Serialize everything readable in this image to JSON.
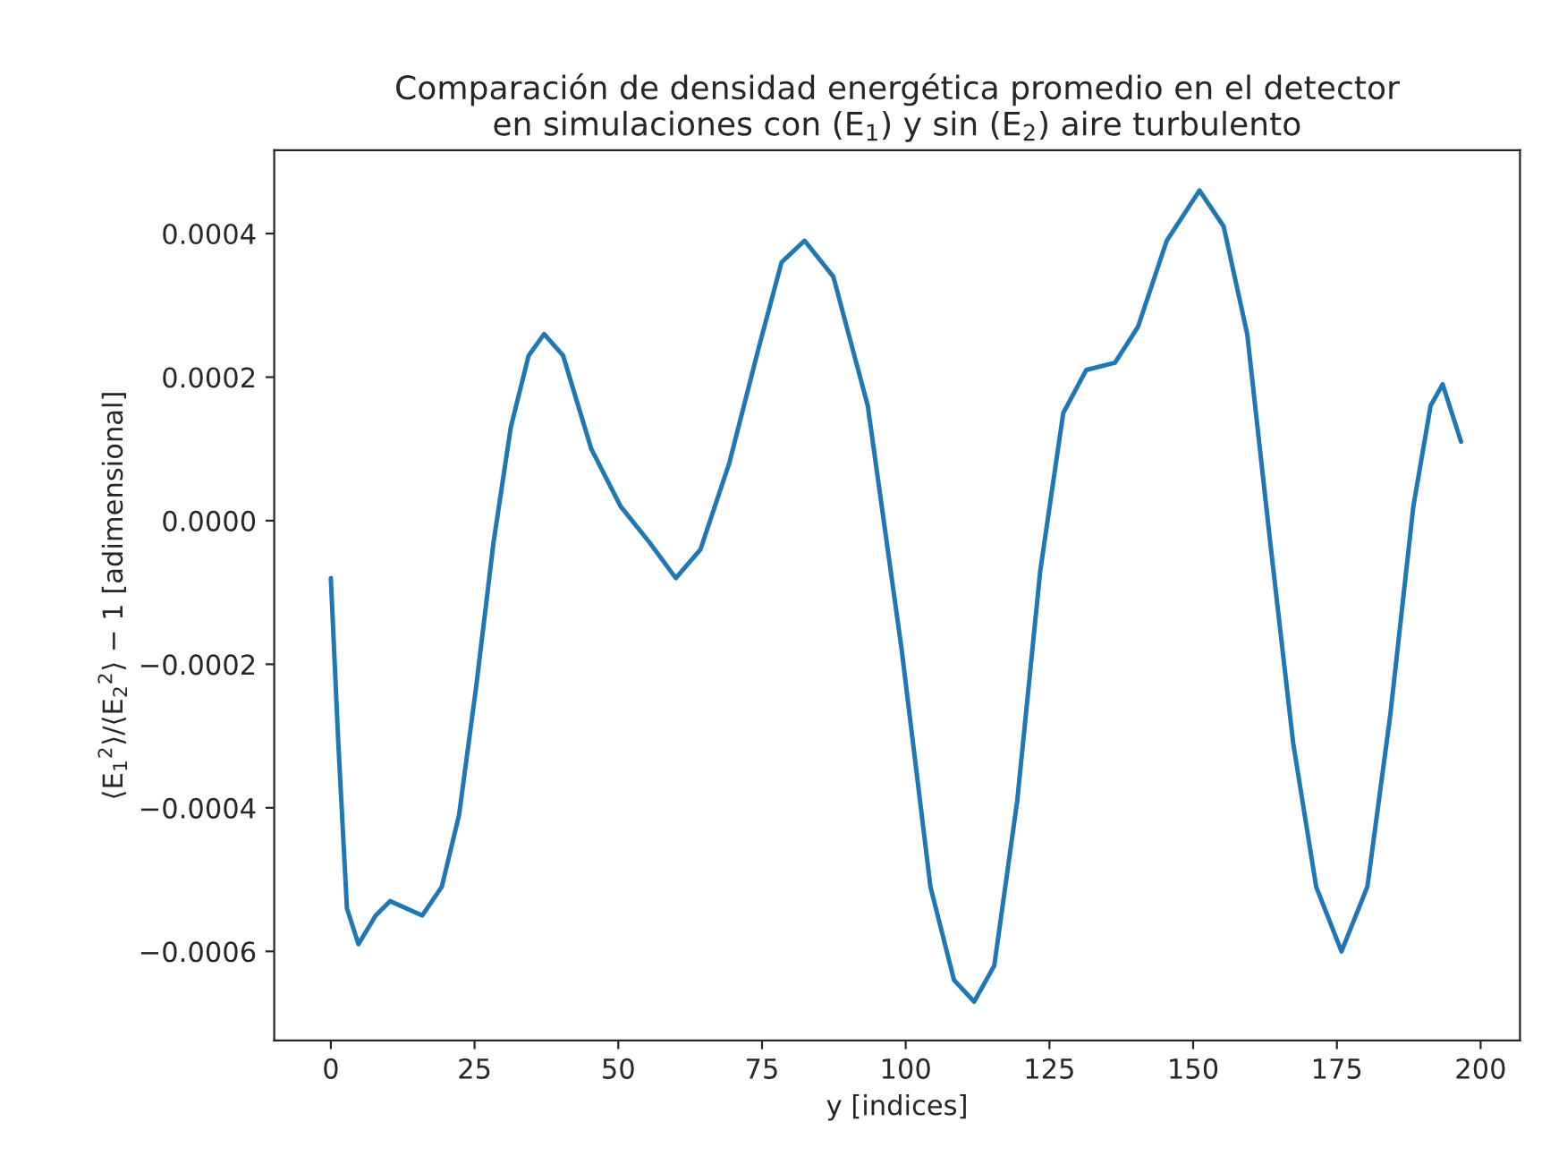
{
  "chart_data": {
    "type": "line",
    "title": "Comparación de densidad energética promedio en el detector\nen simulaciones con (E$_{1}$) y sin (E$_{2}$) aire turbulento",
    "xlabel": "y [indices]",
    "ylabel": "⟨E$_{1}$$^{2}$⟩/⟨E$_{2}$$^{2}$⟩ − 1 [adimensional]",
    "xlim": [
      -9.85,
      206.85
    ],
    "xticks": [
      0,
      25,
      50,
      75,
      100,
      125,
      150,
      175,
      200
    ],
    "ylim": [
      -0.000724,
      0.000516
    ],
    "yticks": [
      {
        "value": -0.0006,
        "label": "−0.0006"
      },
      {
        "value": -0.0004,
        "label": "−0.0004"
      },
      {
        "value": -0.0002,
        "label": "−0.0002"
      },
      {
        "value": 0.0,
        "label": "0.0000"
      },
      {
        "value": 0.0002,
        "label": "0.0002"
      },
      {
        "value": 0.0004,
        "label": "0.0004"
      }
    ],
    "grid": false,
    "series": [
      {
        "color": "#1f77b4",
        "x": [
          0,
          1.3,
          2.8,
          4.8,
          7.8,
          10.3,
          15.9,
          19.3,
          22.3,
          25.3,
          28.3,
          31.3,
          34.4,
          37.1,
          40.4,
          45.3,
          50.4,
          55.4,
          60.0,
          64.3,
          69.3,
          74.4,
          78.4,
          82.4,
          87.4,
          93.4,
          99.3,
          104.3,
          108.4,
          111.9,
          115.4,
          119.4,
          123.4,
          127.4,
          131.4,
          136.4,
          140.4,
          145.4,
          151.1,
          155.3,
          159.4,
          163.4,
          167.4,
          171.4,
          175.8,
          180.3,
          184.3,
          188.3,
          191.3,
          193.4,
          196.6
        ],
        "values": [
          -8e-05,
          -0.00031,
          -0.00054,
          -0.00059,
          -0.00055,
          -0.00053,
          -0.00055,
          -0.00051,
          -0.00041,
          -0.00023,
          -3e-05,
          0.00013,
          0.00023,
          0.00026,
          0.00023,
          0.0001,
          2e-05,
          -3e-05,
          -8e-05,
          -4e-05,
          8e-05,
          0.00024,
          0.00036,
          0.00039,
          0.00034,
          0.00016,
          -0.00018,
          -0.00051,
          -0.00064,
          -0.00067,
          -0.00062,
          -0.00039,
          -7e-05,
          0.00015,
          0.00021,
          0.00022,
          0.00027,
          0.00039,
          0.00046,
          0.00041,
          0.00026,
          -3e-05,
          -0.00031,
          -0.00051,
          -0.0006,
          -0.00051,
          -0.00027,
          2e-05,
          0.00016,
          0.00019,
          0.00011
        ]
      }
    ]
  }
}
